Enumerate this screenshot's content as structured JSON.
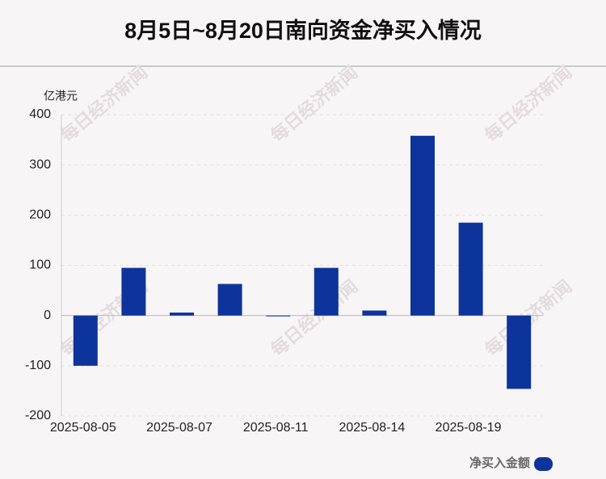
{
  "chart_data": {
    "type": "bar",
    "title": "8月5日~8月20日南向资金净买入情况",
    "y_label": "亿港元",
    "watermark": "每日经济新闻",
    "categories": [
      "2025-08-05",
      null,
      "2025-08-07",
      null,
      "2025-08-11",
      null,
      "2025-08-14",
      null,
      "2025-08-19",
      null
    ],
    "series": [
      {
        "name": "净买入金额",
        "color": "#0d349b",
        "values": [
          -100,
          95,
          6,
          63,
          -1,
          95,
          10,
          358,
          185,
          -146
        ]
      }
    ],
    "ylim": [
      -200,
      400
    ],
    "yticks": [
      -200,
      -100,
      0,
      100,
      200,
      300,
      400
    ],
    "grid": true
  }
}
